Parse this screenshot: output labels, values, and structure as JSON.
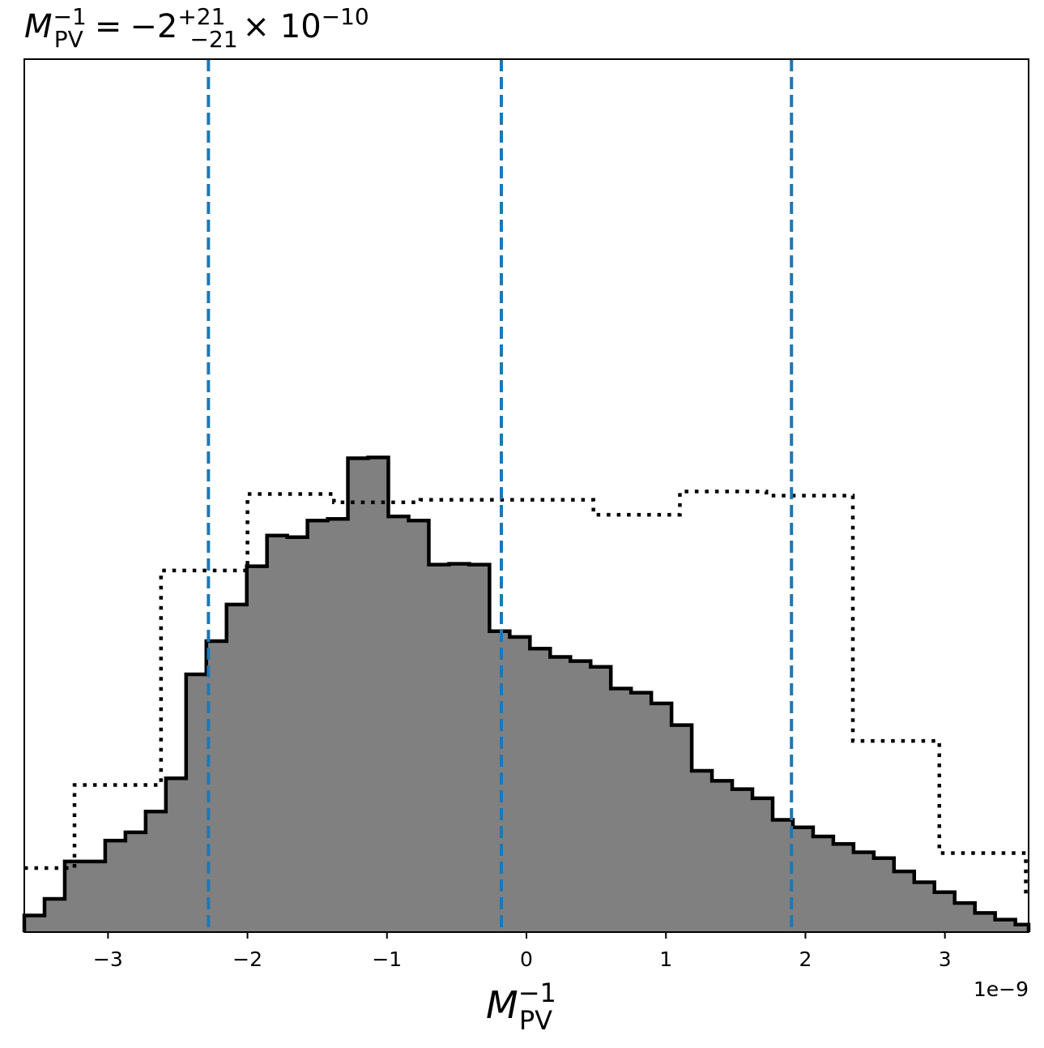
{
  "title": {
    "symbol": "M",
    "superscript": "−1",
    "subscript": "PV",
    "equals": "=",
    "value": "−2",
    "upper": "+21",
    "lower": "−21",
    "times": "× 10",
    "exponent": "−10"
  },
  "xlabel": {
    "symbol": "M",
    "superscript": "−1",
    "subscript": "PV"
  },
  "offset_text": "1e−9",
  "chart_data": {
    "type": "histogram",
    "x_scale_note": "1e-9",
    "xlim": [
      -3.6,
      3.6
    ],
    "ylim": [
      0,
      1.05
    ],
    "xticks": [
      -3,
      -2,
      -1,
      0,
      1,
      2,
      3
    ],
    "xtick_labels": [
      "−3",
      "−2",
      "−1",
      "0",
      "1",
      "2",
      "3"
    ],
    "yticks": [],
    "grid": false,
    "posterior": {
      "style": "filled gray, black outline",
      "fill": "#808080",
      "edge": "#000000",
      "bin_edges": [
        -3.6,
        -3.455,
        -3.31,
        -3.165,
        -3.02,
        -2.875,
        -2.73,
        -2.585,
        -2.44,
        -2.295,
        -2.15,
        -2.005,
        -1.86,
        -1.715,
        -1.57,
        -1.425,
        -1.28,
        -1.135,
        -0.99,
        -0.845,
        -0.7,
        -0.555,
        -0.41,
        -0.265,
        -0.12,
        0.025,
        0.17,
        0.315,
        0.46,
        0.605,
        0.75,
        0.895,
        1.04,
        1.185,
        1.33,
        1.475,
        1.62,
        1.765,
        1.91,
        2.055,
        2.2,
        2.345,
        2.49,
        2.635,
        2.78,
        2.925,
        3.07,
        3.215,
        3.36,
        3.505,
        3.6
      ],
      "counts": [
        0.02,
        0.04,
        0.085,
        0.085,
        0.11,
        0.12,
        0.145,
        0.185,
        0.31,
        0.35,
        0.394,
        0.44,
        0.477,
        0.475,
        0.495,
        0.497,
        0.57,
        0.571,
        0.5,
        0.495,
        0.442,
        0.443,
        0.442,
        0.362,
        0.355,
        0.341,
        0.331,
        0.326,
        0.319,
        0.293,
        0.288,
        0.275,
        0.249,
        0.194,
        0.182,
        0.172,
        0.161,
        0.135,
        0.126,
        0.115,
        0.106,
        0.096,
        0.089,
        0.073,
        0.06,
        0.048,
        0.035,
        0.023,
        0.015,
        0.009
      ]
    },
    "prior": {
      "style": "dotted black step",
      "bin_edges": [
        -3.6,
        -3.24,
        -2.62,
        -2.0,
        -1.38,
        -0.76,
        -0.14,
        0.48,
        1.1,
        1.72,
        2.34,
        2.96,
        3.58
      ],
      "values": [
        0.077,
        0.177,
        0.435,
        0.527,
        0.517,
        0.52,
        0.52,
        0.502,
        0.53,
        0.525,
        0.23,
        0.095
      ]
    },
    "credible_interval": {
      "style": "dashed vertical lines",
      "color": "#1f77b4",
      "values": [
        -2.28,
        -0.18,
        1.9
      ]
    }
  }
}
